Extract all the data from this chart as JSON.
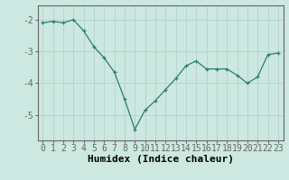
{
  "x": [
    0,
    1,
    2,
    3,
    4,
    5,
    6,
    7,
    8,
    9,
    10,
    11,
    12,
    13,
    14,
    15,
    16,
    17,
    18,
    19,
    20,
    21,
    22,
    23
  ],
  "y": [
    -2.1,
    -2.05,
    -2.1,
    -2.0,
    -2.35,
    -2.85,
    -3.2,
    -3.65,
    -4.5,
    -5.45,
    -4.85,
    -4.55,
    -4.2,
    -3.85,
    -3.45,
    -3.3,
    -3.55,
    -3.55,
    -3.55,
    -3.75,
    -4.0,
    -3.8,
    -3.1,
    -3.05
  ],
  "line_color": "#2e7d6e",
  "marker": "+",
  "bg_color": "#cce8e0",
  "grid_color": "#b0d4cc",
  "axis_color": "#666666",
  "xlabel": "Humidex (Indice chaleur)",
  "xlim": [
    -0.5,
    23.5
  ],
  "ylim": [
    -5.8,
    -1.55
  ],
  "yticks": [
    -2,
    -3,
    -4,
    -5
  ],
  "xticks": [
    0,
    1,
    2,
    3,
    4,
    5,
    6,
    7,
    8,
    9,
    10,
    11,
    12,
    13,
    14,
    15,
    16,
    17,
    18,
    19,
    20,
    21,
    22,
    23
  ],
  "xlabel_size": 8,
  "tick_size": 7
}
